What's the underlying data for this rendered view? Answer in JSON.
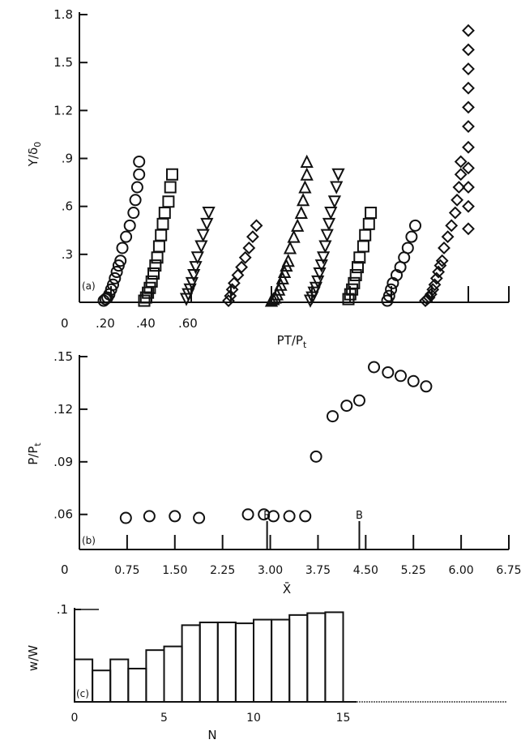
{
  "chart_data": [
    {
      "panel": "a",
      "type": "scatter",
      "panel_label": "(a)",
      "ylabel": "Y/δ",
      "ylabel_sub": "0",
      "xlabel": "PT/P",
      "xlabel_sub": "t",
      "ylim": [
        0,
        1.8
      ],
      "y_ticks": [
        0.3,
        0.6,
        0.9,
        1.2,
        1.5,
        1.8
      ],
      "y_tick_labels": [
        ".3",
        ".6",
        ".9",
        "1.2",
        "1.5",
        "1.8"
      ],
      "origin_label": "0",
      "x_tick_labels": [
        ".20",
        ".40",
        ".60"
      ],
      "series": [
        {
          "marker": "circle",
          "x": [
            0.13,
            0.14,
            0.15,
            0.16,
            0.17,
            0.18,
            0.19,
            0.2,
            0.21,
            0.22,
            0.23,
            0.25,
            0.27,
            0.29,
            0.3,
            0.31,
            0.32,
            0.32
          ],
          "y": [
            0.01,
            0.02,
            0.03,
            0.05,
            0.08,
            0.11,
            0.15,
            0.19,
            0.23,
            0.26,
            0.34,
            0.41,
            0.48,
            0.56,
            0.64,
            0.72,
            0.8,
            0.88
          ]
        },
        {
          "marker": "square",
          "x": [
            0.32,
            0.33,
            0.34,
            0.35,
            0.36,
            0.37,
            0.38,
            0.39,
            0.4,
            0.41,
            0.42,
            0.43,
            0.45,
            0.46,
            0.47
          ],
          "y": [
            0.01,
            0.03,
            0.06,
            0.09,
            0.13,
            0.18,
            0.23,
            0.28,
            0.35,
            0.42,
            0.49,
            0.56,
            0.63,
            0.72,
            0.8
          ]
        },
        {
          "marker": "triangle-down",
          "x": [
            0.44,
            0.45,
            0.46,
            0.47,
            0.48,
            0.49,
            0.5,
            0.52,
            0.53,
            0.55,
            0.56
          ],
          "y": [
            0.02,
            0.05,
            0.08,
            0.12,
            0.17,
            0.22,
            0.28,
            0.35,
            0.42,
            0.49,
            0.56
          ]
        },
        {
          "marker": "diamond",
          "x": [
            0.55,
            0.56,
            0.57,
            0.58,
            0.6,
            0.62,
            0.64,
            0.66,
            0.68,
            0.7
          ],
          "y": [
            0.01,
            0.04,
            0.08,
            0.12,
            0.17,
            0.22,
            0.28,
            0.34,
            0.41,
            0.48
          ]
        }
      ]
    },
    {
      "panel": "b",
      "type": "scatter",
      "panel_label": "(b)",
      "ylabel": "P/P",
      "ylabel_sub": "t",
      "xlabel": "X̄",
      "ylim": [
        0.04,
        0.15
      ],
      "y_ticks": [
        0.06,
        0.09,
        0.12,
        0.15
      ],
      "y_tick_labels": [
        ".06",
        ".09",
        ".12",
        ".15"
      ],
      "origin_label": "0",
      "xlim": [
        0,
        6.75
      ],
      "x_ticks": [
        0.75,
        1.5,
        2.25,
        3.0,
        3.75,
        4.5,
        5.25,
        6.0,
        6.75
      ],
      "x_tick_labels": [
        "0.75",
        "1.50",
        "2.25",
        "3.00",
        "3.75",
        "4.50",
        "5.25",
        "6.00",
        "6.75"
      ],
      "annotations": [
        {
          "text": "B",
          "x": 2.95
        },
        {
          "text": "B",
          "x": 4.4
        }
      ],
      "series": [
        {
          "marker": "circle",
          "x": [
            0.73,
            1.1,
            1.5,
            1.88,
            2.65,
            2.9,
            3.05,
            3.3,
            3.55,
            3.72,
            3.98,
            4.2,
            4.4,
            4.63,
            4.85,
            5.05,
            5.25,
            5.45
          ],
          "y": [
            0.058,
            0.059,
            0.059,
            0.058,
            0.06,
            0.06,
            0.059,
            0.059,
            0.059,
            0.093,
            0.116,
            0.122,
            0.125,
            0.144,
            0.141,
            0.139,
            0.136,
            0.133
          ]
        }
      ]
    },
    {
      "panel": "c",
      "type": "bar",
      "panel_label": "(c)",
      "ylabel": "w/W",
      "xlabel": "N",
      "ylim": [
        0,
        0.1
      ],
      "y_ticks": [
        0.1
      ],
      "y_tick_labels": [
        ".1"
      ],
      "x_ticks": [
        0,
        5,
        10,
        15
      ],
      "x_tick_labels": [
        "0",
        "5",
        "10",
        "15"
      ],
      "categories": [
        1,
        2,
        3,
        4,
        5,
        6,
        7,
        8,
        9,
        10,
        11,
        12,
        13,
        14,
        15
      ],
      "values": [
        0.046,
        0.034,
        0.046,
        0.036,
        0.056,
        0.06,
        0.083,
        0.086,
        0.086,
        0.085,
        0.089,
        0.089,
        0.094,
        0.096,
        0.097
      ]
    }
  ]
}
